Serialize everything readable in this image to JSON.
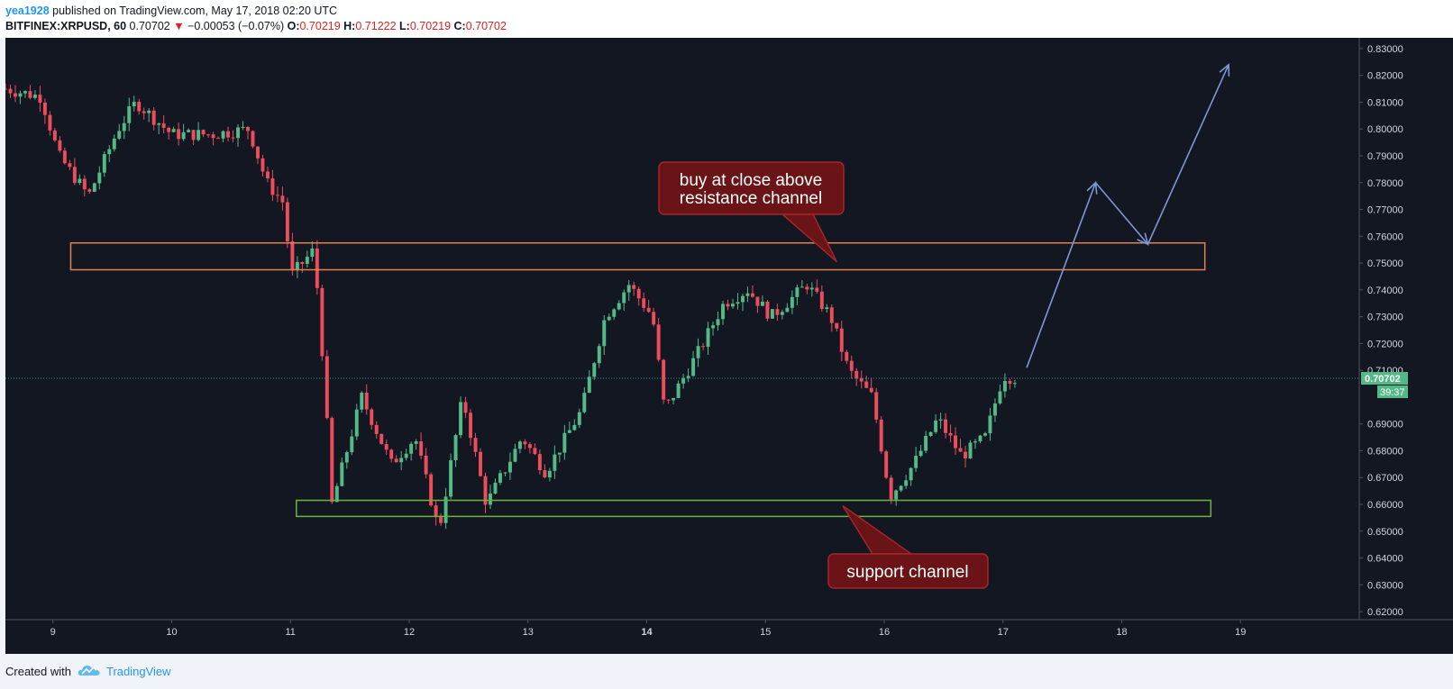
{
  "header": {
    "author": "yea1928",
    "published_text": " published on TradingView.com, May 17, 2018 02:20 UTC",
    "symbol": "BITFINEX:XRPUSD, 60",
    "last_price": "0.70702",
    "change_arrow": "▼",
    "change": "−0.00053 (−0.07%)",
    "open_label": "O:",
    "open": "0.70219",
    "high_label": "H:",
    "high": "0.71222",
    "low_label": "L:",
    "low": "0.70219",
    "close_label": "C:",
    "close": "0.70702"
  },
  "footer": {
    "created_with": "Created with",
    "brand": "TradingView",
    "logo_icon": "tradingview-cloud-icon"
  },
  "colors": {
    "background": "#131722",
    "up": "#53b987",
    "down": "#eb4d5c",
    "resistance": "#e38051",
    "support": "#6db33f",
    "arrow": "#7e97d6",
    "callout_fill": "#6a1417",
    "callout_border": "#a3262b",
    "price_line": "#26a69a"
  },
  "chart_data": {
    "type": "candlestick",
    "symbol": "BITFINEX:XRPUSD",
    "interval": "60",
    "y_ticks": [
      "0.83000",
      "0.82000",
      "0.81000",
      "0.80000",
      "0.79000",
      "0.78000",
      "0.77000",
      "0.76000",
      "0.75000",
      "0.74000",
      "0.73000",
      "0.72000",
      "0.71000",
      "0.69000",
      "0.68000",
      "0.67000",
      "0.66000",
      "0.65000",
      "0.64000",
      "0.63000",
      "0.62000"
    ],
    "x_ticks": [
      "9",
      "10",
      "11",
      "12",
      "13",
      "14",
      "15",
      "16",
      "17",
      "18",
      "19"
    ],
    "ylim": [
      0.617,
      0.834
    ],
    "last_price_label": "0.70702",
    "countdown_label": "39:37",
    "resistance_channel": {
      "x": [
        9.15,
        18.7
      ],
      "y": [
        0.7475,
        0.7575
      ]
    },
    "support_channel": {
      "x": [
        11.05,
        18.75
      ],
      "y": [
        0.6555,
        0.6615
      ]
    },
    "annotations": [
      {
        "text_lines": [
          "buy at close above",
          "resistance channel"
        ],
        "pointer_to": {
          "x": 15.6,
          "y": 0.7505
        }
      },
      {
        "text_lines": [
          "support channel"
        ],
        "pointer_to": {
          "x": 15.65,
          "y": 0.6595
        }
      }
    ],
    "projection_path": [
      {
        "x": 17.2,
        "y": 0.711
      },
      {
        "x": 17.78,
        "y": 0.78
      },
      {
        "x": 18.22,
        "y": 0.757
      },
      {
        "x": 18.9,
        "y": 0.824
      }
    ],
    "key_price_points": [
      {
        "x": 8.6,
        "y": 0.815
      },
      {
        "x": 8.9,
        "y": 0.812
      },
      {
        "x": 9.05,
        "y": 0.79
      },
      {
        "x": 9.3,
        "y": 0.775
      },
      {
        "x": 9.55,
        "y": 0.8
      },
      {
        "x": 9.7,
        "y": 0.81
      },
      {
        "x": 10.0,
        "y": 0.798
      },
      {
        "x": 10.35,
        "y": 0.798
      },
      {
        "x": 10.65,
        "y": 0.8
      },
      {
        "x": 10.8,
        "y": 0.78
      },
      {
        "x": 10.95,
        "y": 0.772
      },
      {
        "x": 11.0,
        "y": 0.745
      },
      {
        "x": 11.2,
        "y": 0.755
      },
      {
        "x": 11.28,
        "y": 0.71
      },
      {
        "x": 11.35,
        "y": 0.66
      },
      {
        "x": 11.6,
        "y": 0.7
      },
      {
        "x": 11.85,
        "y": 0.675
      },
      {
        "x": 12.05,
        "y": 0.685
      },
      {
        "x": 12.25,
        "y": 0.65
      },
      {
        "x": 12.45,
        "y": 0.7
      },
      {
        "x": 12.65,
        "y": 0.66
      },
      {
        "x": 12.95,
        "y": 0.685
      },
      {
        "x": 13.15,
        "y": 0.672
      },
      {
        "x": 13.45,
        "y": 0.695
      },
      {
        "x": 13.65,
        "y": 0.73
      },
      {
        "x": 13.85,
        "y": 0.742
      },
      {
        "x": 14.05,
        "y": 0.73
      },
      {
        "x": 14.15,
        "y": 0.695
      },
      {
        "x": 14.45,
        "y": 0.718
      },
      {
        "x": 14.65,
        "y": 0.735
      },
      {
        "x": 14.85,
        "y": 0.74
      },
      {
        "x": 15.05,
        "y": 0.73
      },
      {
        "x": 15.35,
        "y": 0.742
      },
      {
        "x": 15.55,
        "y": 0.73
      },
      {
        "x": 15.7,
        "y": 0.71
      },
      {
        "x": 15.9,
        "y": 0.7
      },
      {
        "x": 16.05,
        "y": 0.663
      },
      {
        "x": 16.25,
        "y": 0.675
      },
      {
        "x": 16.45,
        "y": 0.692
      },
      {
        "x": 16.65,
        "y": 0.678
      },
      {
        "x": 16.85,
        "y": 0.685
      },
      {
        "x": 17.0,
        "y": 0.708
      },
      {
        "x": 17.12,
        "y": 0.707
      }
    ]
  }
}
